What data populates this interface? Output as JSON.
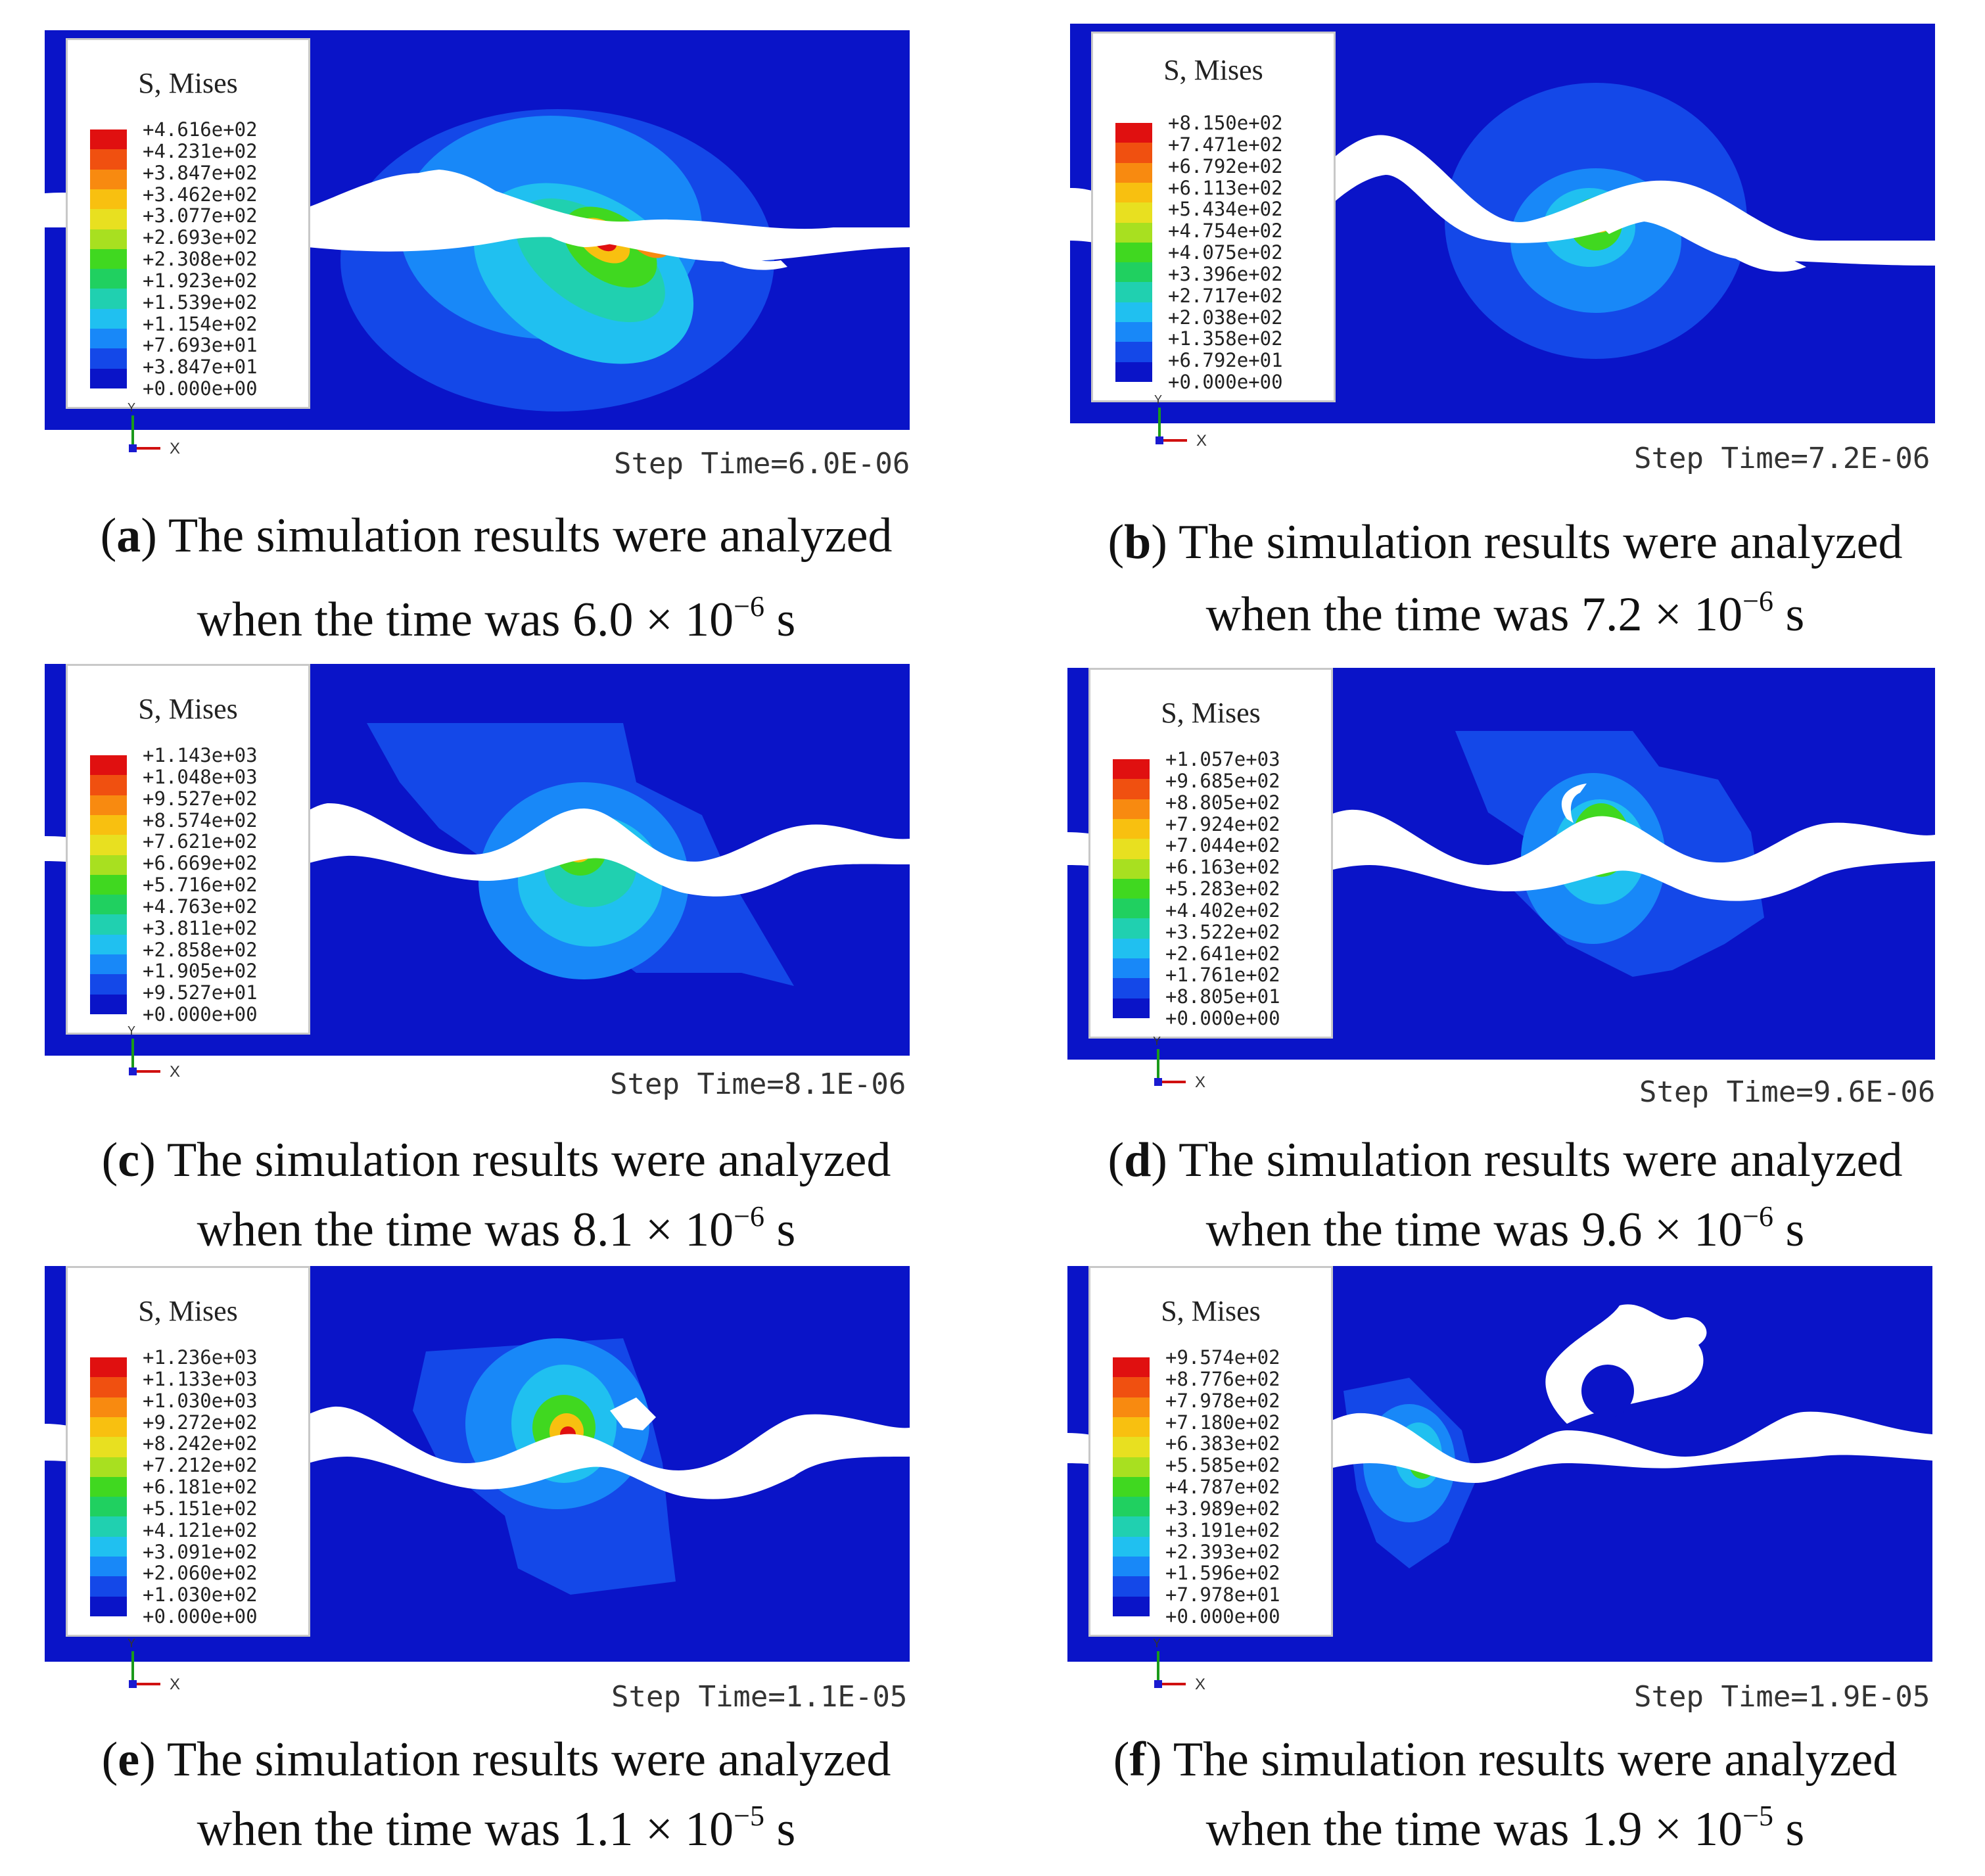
{
  "panels": [
    {
      "id": "a",
      "legend_title": "S, Mises",
      "legend_values": [
        "+4.616e+02",
        "+4.231e+02",
        "+3.847e+02",
        "+3.462e+02",
        "+3.077e+02",
        "+2.693e+02",
        "+2.308e+02",
        "+1.923e+02",
        "+1.539e+02",
        "+1.154e+02",
        "+7.693e+01",
        "+3.847e+01",
        "+0.000e+00"
      ],
      "axis_y": "Y",
      "axis_x": "X",
      "step_time": "Step Time=6.0E-06",
      "caption_letter": "a",
      "caption_line1": "The simulation results were analyzed",
      "caption_line2_prefix": "when the time was 6.0 × 10",
      "caption_exponent": "−6",
      "caption_unit": "s"
    },
    {
      "id": "b",
      "legend_title": "S, Mises",
      "legend_values": [
        "+8.150e+02",
        "+7.471e+02",
        "+6.792e+02",
        "+6.113e+02",
        "+5.434e+02",
        "+4.754e+02",
        "+4.075e+02",
        "+3.396e+02",
        "+2.717e+02",
        "+2.038e+02",
        "+1.358e+02",
        "+6.792e+01",
        "+0.000e+00"
      ],
      "axis_y": "Y",
      "axis_x": "X",
      "step_time": "Step Time=7.2E-06",
      "caption_letter": "b",
      "caption_line1": "The simulation results were analyzed",
      "caption_line2_prefix": "when the time was 7.2 × 10",
      "caption_exponent": "−6",
      "caption_unit": "s"
    },
    {
      "id": "c",
      "legend_title": "S, Mises",
      "legend_values": [
        "+1.143e+03",
        "+1.048e+03",
        "+9.527e+02",
        "+8.574e+02",
        "+7.621e+02",
        "+6.669e+02",
        "+5.716e+02",
        "+4.763e+02",
        "+3.811e+02",
        "+2.858e+02",
        "+1.905e+02",
        "+9.527e+01",
        "+0.000e+00"
      ],
      "axis_y": "Y",
      "axis_x": "X",
      "step_time": "Step Time=8.1E-06",
      "caption_letter": "c",
      "caption_line1": "The simulation results were analyzed",
      "caption_line2_prefix": "when the time was 8.1 × 10",
      "caption_exponent": "−6",
      "caption_unit": "s"
    },
    {
      "id": "d",
      "legend_title": "S, Mises",
      "legend_values": [
        "+1.057e+03",
        "+9.685e+02",
        "+8.805e+02",
        "+7.924e+02",
        "+7.044e+02",
        "+6.163e+02",
        "+5.283e+02",
        "+4.402e+02",
        "+3.522e+02",
        "+2.641e+02",
        "+1.761e+02",
        "+8.805e+01",
        "+0.000e+00"
      ],
      "axis_y": "Y",
      "axis_x": "X",
      "step_time": "Step Time=9.6E-06",
      "caption_letter": "d",
      "caption_line1": "The simulation results were analyzed",
      "caption_line2_prefix": "when the time was 9.6 × 10",
      "caption_exponent": "−6",
      "caption_unit": "s"
    },
    {
      "id": "e",
      "legend_title": "S, Mises",
      "legend_values": [
        "+1.236e+03",
        "+1.133e+03",
        "+1.030e+03",
        "+9.272e+02",
        "+8.242e+02",
        "+7.212e+02",
        "+6.181e+02",
        "+5.151e+02",
        "+4.121e+02",
        "+3.091e+02",
        "+2.060e+02",
        "+1.030e+02",
        "+0.000e+00"
      ],
      "axis_y": "Y",
      "axis_x": "X",
      "step_time": "Step Time=1.1E-05",
      "caption_letter": "e",
      "caption_line1": "The simulation results were analyzed",
      "caption_line2_prefix": "when the time was 1.1 × 10",
      "caption_exponent": "−5",
      "caption_unit": "s"
    },
    {
      "id": "f",
      "legend_title": "S, Mises",
      "legend_values": [
        "+9.574e+02",
        "+8.776e+02",
        "+7.978e+02",
        "+7.180e+02",
        "+6.383e+02",
        "+5.585e+02",
        "+4.787e+02",
        "+3.989e+02",
        "+3.191e+02",
        "+2.393e+02",
        "+1.596e+02",
        "+7.978e+01",
        "+0.000e+00"
      ],
      "axis_y": "Y",
      "axis_x": "X",
      "step_time": "Step Time=1.9E-05",
      "caption_letter": "f",
      "caption_line1": "The simulation results were analyzed",
      "caption_line2_prefix": "when the time was 1.9 × 10",
      "caption_exponent": "−5",
      "caption_unit": "s"
    }
  ],
  "colors": {
    "background_field": "#0a14c8",
    "scale": [
      "#e01010",
      "#f05010",
      "#f88a10",
      "#f8c010",
      "#e8e020",
      "#a8e020",
      "#40d820",
      "#20d060",
      "#20d0b0",
      "#20c0f0",
      "#1888f8",
      "#1448e8",
      "#0a14c8"
    ]
  }
}
